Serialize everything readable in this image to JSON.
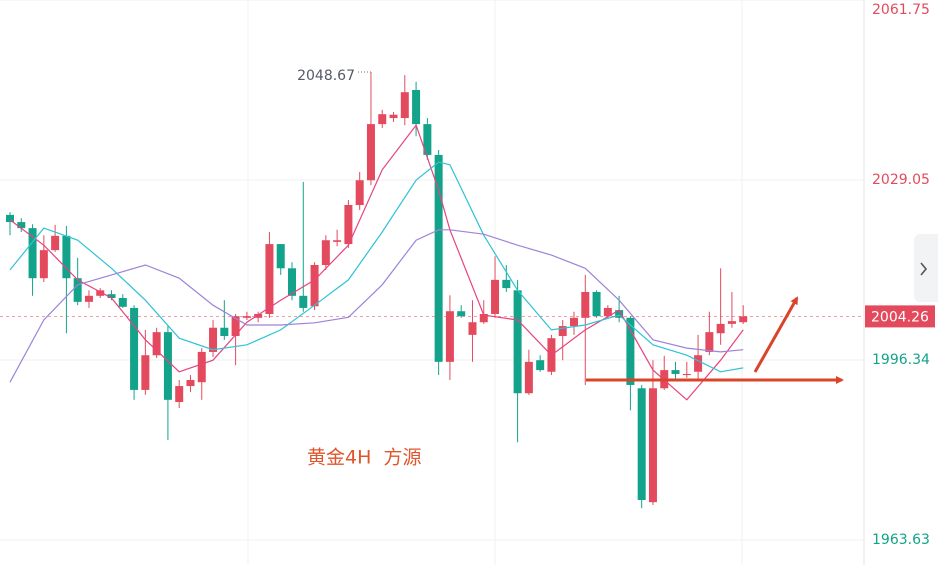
{
  "chart_data": {
    "type": "candlestick",
    "annotation": "黄金4H  方源",
    "ylim": [
      1963.63,
      2061.75
    ],
    "yticks": [
      1963.63,
      1996.34,
      2029.05,
      2061.75
    ],
    "grid": true,
    "up_color": "#e44a5d",
    "down_color": "#13a38a",
    "open": [
      2022.7,
      2021.4,
      2020.3,
      2011.2,
      2016.3,
      2018.9,
      2011.2,
      2006.9,
      2008.0,
      2008.3,
      2007.6,
      2005.8,
      1990.9,
      1997.2,
      2001.4,
      1988.7,
      1991.6,
      1992.3,
      1997.8,
      2002.2,
      2000.7,
      2004.0,
      2004.0,
      2004.7,
      2017.4,
      2013.0,
      2008.0,
      2006.1,
      2013.6,
      2017.8,
      2017.4,
      2024.5,
      2029.0,
      2039.2,
      2040.3,
      2040.3,
      2045.4,
      2039.2,
      2033.6,
      1996.0,
      2005.2,
      2000.9,
      2003.2,
      2004.7,
      2010.9,
      2009.0,
      1990.3,
      1996.3,
      1994.2,
      2000.7,
      2002.5,
      2004.0,
      2008.7,
      2004.3,
      2005.4,
      2004.0,
      1991.2,
      1970.5,
      1991.2,
      1994.5,
      1993.6,
      1994.2,
      1997.8,
      2001.2,
      2002.9,
      2003.2
    ],
    "high": [
      2023.2,
      2022.1,
      2021.0,
      2019.0,
      2020.9,
      2020.7,
      2014.9,
      2009.0,
      2009.4,
      2009.0,
      2008.3,
      2006.3,
      2001.8,
      2002.2,
      2002.7,
      1992.7,
      1993.6,
      1998.5,
      2003.6,
      2007.2,
      2004.7,
      2005.1,
      2005.1,
      2019.6,
      2017.4,
      2014.1,
      2028.7,
      2014.1,
      2019.0,
      2020.0,
      2025.4,
      2030.5,
      2048.67,
      2041.8,
      2041.4,
      2048.1,
      2046.9,
      2040.3,
      2034.5,
      2008.1,
      2006.3,
      2007.2,
      2007.2,
      2015.2,
      2013.6,
      2010.9,
      1998.2,
      1997.2,
      2000.9,
      2003.6,
      2005.1,
      2011.8,
      2009.0,
      2006.3,
      2008.0,
      2004.3,
      1991.8,
      1996.3,
      1997.1,
      1996.0,
      1996.0,
      2000.9,
      2005.1,
      2013.0,
      2008.7,
      2006.3
    ],
    "low": [
      2019.0,
      2019.6,
      2008.0,
      2010.5,
      2016.0,
      2001.2,
      2006.3,
      2005.8,
      2007.6,
      2007.2,
      2005.8,
      1989.1,
      1990.0,
      1996.7,
      1981.8,
      1987.6,
      1990.5,
      1989.1,
      1996.9,
      2000.0,
      1995.4,
      2003.6,
      2003.2,
      2004.0,
      2011.8,
      2007.2,
      2005.1,
      2005.4,
      2012.7,
      2017.0,
      2016.7,
      2023.6,
      2028.1,
      2038.5,
      2039.6,
      2039.0,
      2037.0,
      2032.7,
      1993.6,
      1992.7,
      2004.0,
      1996.0,
      2002.9,
      2004.0,
      2008.7,
      1981.4,
      1990.0,
      1994.2,
      1993.6,
      1996.3,
      2000.9,
      1991.8,
      2004.0,
      2004.0,
      2003.2,
      1987.2,
      1969.4,
      1970.0,
      1990.9,
      1992.7,
      1993.1,
      1992.7,
      1997.2,
      1999.1,
      2002.2,
      2002.9
    ],
    "close": [
      2021.4,
      2020.3,
      2011.2,
      2016.3,
      2018.9,
      2011.2,
      2006.9,
      2008.0,
      2009.0,
      2007.6,
      2006.0,
      1990.9,
      1997.2,
      2001.4,
      1989.1,
      1991.6,
      1992.7,
      1997.8,
      2002.2,
      2000.7,
      2004.3,
      2004.3,
      2004.7,
      2017.4,
      2013.0,
      2008.0,
      2005.8,
      2013.6,
      2018.1,
      2018.1,
      2024.5,
      2029.0,
      2039.2,
      2041.0,
      2040.9,
      2045.0,
      2039.2,
      2033.6,
      1996.0,
      2005.2,
      2004.3,
      2003.2,
      2004.7,
      2010.9,
      2009.4,
      1990.3,
      1996.0,
      1994.5,
      2000.3,
      2002.5,
      2004.0,
      2008.7,
      2004.3,
      2005.8,
      2004.0,
      1991.8,
      1970.9,
      1991.2,
      1994.5,
      1993.8,
      1993.8,
      1997.2,
      2001.4,
      2002.9,
      2003.4,
      2004.26
    ],
    "series": [
      {
        "color": "#e8437f",
        "x": [
          0,
          3,
          6,
          9,
          12,
          15,
          18,
          21,
          24,
          27,
          30,
          33,
          36,
          38,
          39,
          42,
          45,
          48,
          51,
          54,
          57,
          60,
          63,
          65
        ],
        "values": [
          2021.8,
          2017.2,
          2010.9,
          2007.6,
          2000.0,
          1994.2,
          1996.3,
          2003.2,
          2007.2,
          2010.9,
          2017.2,
          2030.9,
          2039.0,
          2027.2,
          2020.0,
          2004.5,
          2003.6,
          1997.2,
          2001.8,
          2005.4,
          1994.5,
          1989.1,
          1996.3,
          2001.8
        ]
      },
      {
        "color": "#2fc3d5",
        "x": [
          0,
          3,
          6,
          9,
          12,
          15,
          18,
          21,
          24,
          27,
          30,
          33,
          36,
          38,
          39,
          42,
          45,
          48,
          51,
          54,
          57,
          60,
          63,
          65
        ],
        "values": [
          2012.7,
          2020.3,
          2018.1,
          2013.0,
          2007.2,
          2000.3,
          1998.2,
          1999.1,
          2001.8,
          2006.3,
          2010.9,
          2019.6,
          2029.0,
          2032.3,
          2031.8,
          2019.0,
          2009.0,
          2001.8,
          2002.7,
          2004.5,
          1999.1,
          1997.2,
          1994.2,
          1994.9
        ]
      },
      {
        "color": "#9d84d8",
        "x": [
          0,
          3,
          6,
          9,
          12,
          15,
          18,
          21,
          24,
          27,
          30,
          33,
          36,
          38,
          39,
          42,
          45,
          48,
          51,
          54,
          57,
          60,
          63,
          65
        ],
        "values": [
          1992.3,
          2003.6,
          2010.0,
          2011.8,
          2013.6,
          2011.2,
          2006.3,
          2002.7,
          2002.7,
          2003.1,
          2004.1,
          2010.0,
          2018.1,
          2020.0,
          2020.0,
          2019.2,
          2017.2,
          2015.4,
          2013.0,
          2007.2,
          2000.0,
          1998.5,
          1997.8,
          1998.2
        ]
      }
    ]
  }
}
